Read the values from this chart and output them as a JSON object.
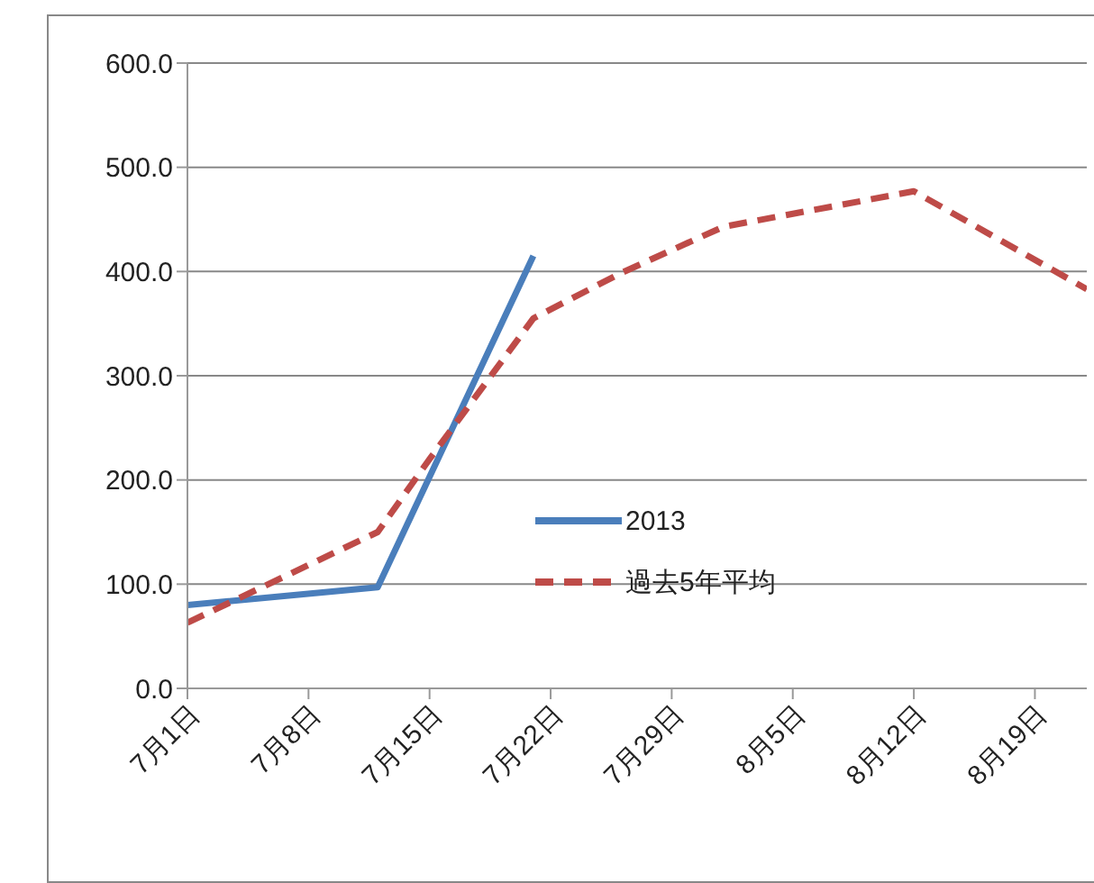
{
  "chart_data": {
    "type": "line",
    "xlim": [
      "--07-01",
      "--08-22"
    ],
    "xticks": [
      {
        "value": "--07-01",
        "label": "7月1日"
      },
      {
        "value": "--07-08",
        "label": "7月8日"
      },
      {
        "value": "--07-15",
        "label": "7月15日"
      },
      {
        "value": "--07-22",
        "label": "7月22日"
      },
      {
        "value": "--07-29",
        "label": "7月29日"
      },
      {
        "value": "--08-05",
        "label": "8月5日"
      },
      {
        "value": "--08-12",
        "label": "8月12日"
      },
      {
        "value": "--08-19",
        "label": "8月19日"
      }
    ],
    "ylim": [
      0,
      600
    ],
    "yticks": [
      {
        "value": 0,
        "label": "0.0"
      },
      {
        "value": 100,
        "label": "100.0"
      },
      {
        "value": 200,
        "label": "200.0"
      },
      {
        "value": 300,
        "label": "300.0"
      },
      {
        "value": 400,
        "label": "400.0"
      },
      {
        "value": 500,
        "label": "500.0"
      },
      {
        "value": 600,
        "label": "600.0"
      }
    ],
    "grid": "y",
    "legend": "center",
    "marker": "none",
    "series": [
      {
        "name": "2013",
        "color": "#4a7ebb",
        "line_style": "solid",
        "x": [
          "--07-01",
          "--07-12",
          "--07-21"
        ],
        "values": [
          80,
          97,
          415
        ]
      },
      {
        "name": "過去5年平均",
        "color": "#be4b48",
        "line_style": "dashed",
        "x": [
          "--07-01",
          "--07-12",
          "--07-15",
          "--07-21",
          "--07-26",
          "--08-01",
          "--08-12",
          "--08-22"
        ],
        "values": [
          63,
          150,
          220,
          355,
          398,
          443,
          477,
          383
        ]
      }
    ]
  }
}
